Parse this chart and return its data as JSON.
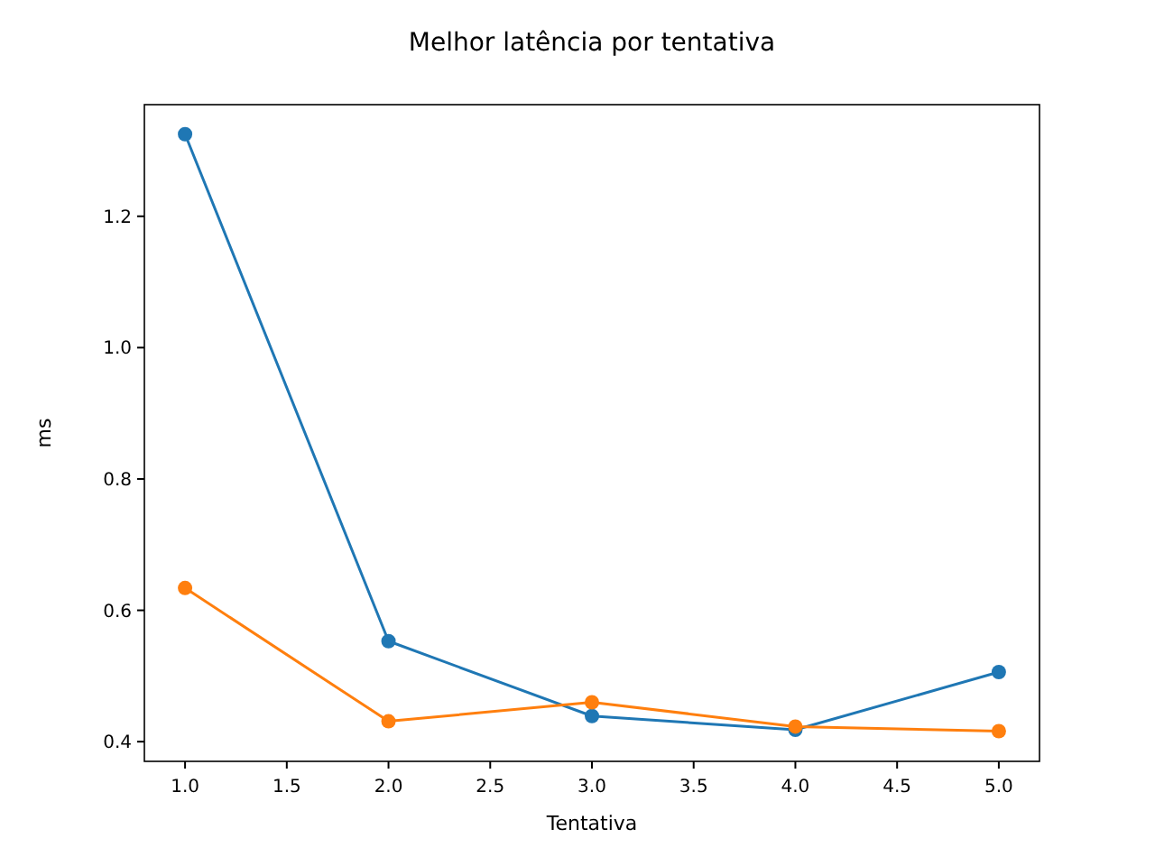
{
  "chart_data": {
    "type": "line",
    "title": "Melhor latência por tentativa",
    "xlabel": "Tentativa",
    "ylabel": "ms",
    "x": [
      1,
      2,
      3,
      4,
      5
    ],
    "series": [
      {
        "color": "#1f77b4",
        "values": [
          1.325,
          0.553,
          0.439,
          0.418,
          0.506
        ]
      },
      {
        "color": "#ff7f0e",
        "values": [
          0.634,
          0.431,
          0.46,
          0.423,
          0.416
        ]
      }
    ],
    "xlim": [
      0.8,
      5.2
    ],
    "xticks": [
      {
        "value": 1,
        "label": "1.0"
      },
      {
        "value": 1.5,
        "label": "1.5"
      },
      {
        "value": 2,
        "label": "2.0"
      },
      {
        "value": 2.5,
        "label": "2.5"
      },
      {
        "value": 3,
        "label": "3.0"
      },
      {
        "value": 3.5,
        "label": "3.5"
      },
      {
        "value": 4,
        "label": "4.0"
      },
      {
        "value": 4.5,
        "label": "4.5"
      },
      {
        "value": 5,
        "label": "5.0"
      }
    ],
    "ylim": [
      0.37,
      1.37
    ],
    "yticks": [
      {
        "value": 0.4,
        "label": "0.4"
      },
      {
        "value": 0.6,
        "label": "0.6"
      },
      {
        "value": 0.8,
        "label": "0.8"
      },
      {
        "value": 1,
        "label": "1.0"
      },
      {
        "value": 1.2,
        "label": "1.2"
      }
    ],
    "marker": "circle",
    "line_style": "solid",
    "grid": false
  }
}
